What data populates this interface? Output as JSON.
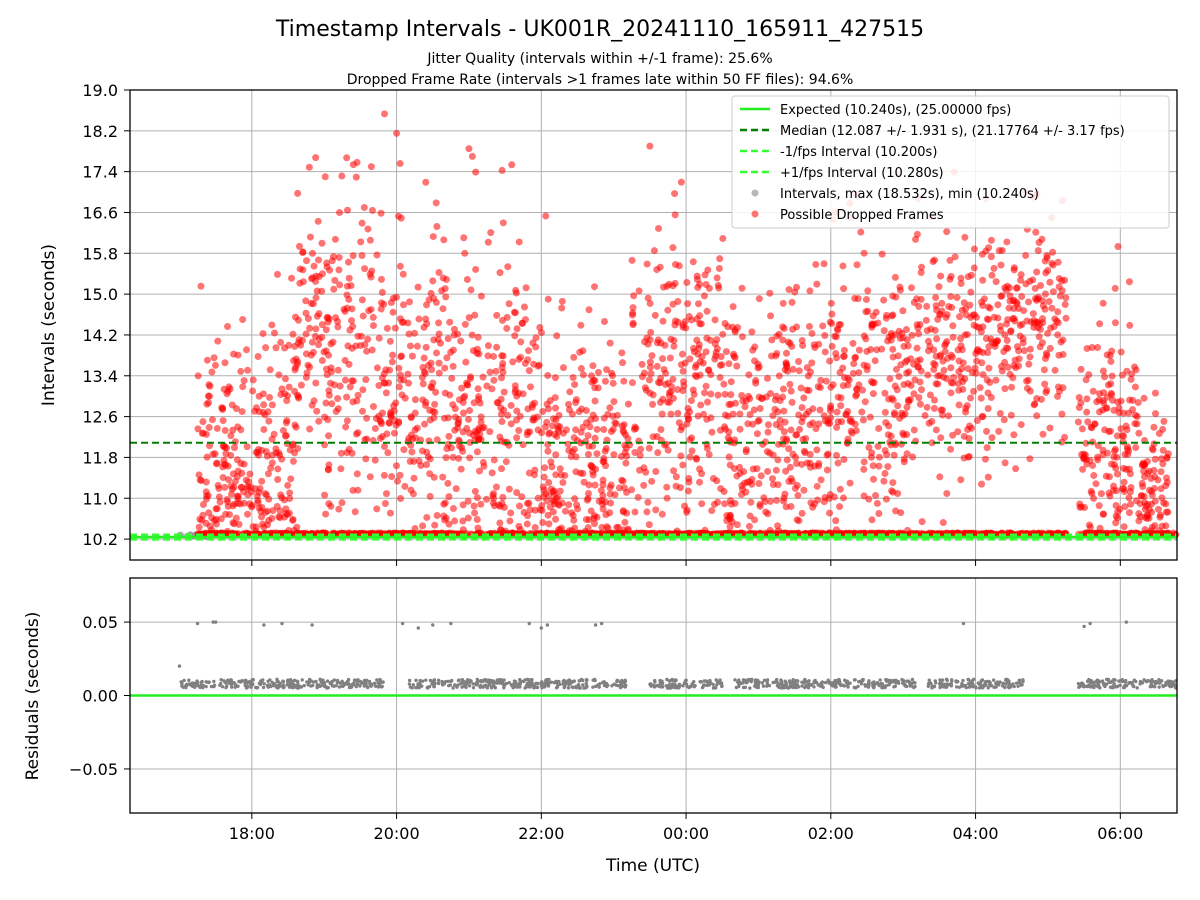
{
  "title": "Timestamp Intervals - UK001R_20241110_165911_427515",
  "subtitle_1": "Jitter Quality (intervals within +/-1 frame): 25.6%",
  "subtitle_2": "Dropped Frame Rate (intervals >1 frames late within 50 FF files): 94.6%",
  "colors": {
    "expected": "#22ee22",
    "median": "#008000",
    "fps_bound": "#33ff33",
    "intervals": "#999999",
    "dropped": "#ff0000",
    "residual": "#808080",
    "grid": "#b0b0b0"
  },
  "chart_data": [
    {
      "type": "scatter",
      "ylabel": "Intervals (seconds)",
      "xlim": [
        "16:19",
        "06:47"
      ],
      "ylim": [
        9.79,
        19.0
      ],
      "yticks": [
        "10.2",
        "11.0",
        "11.8",
        "12.6",
        "13.4",
        "14.2",
        "15.0",
        "15.8",
        "16.6",
        "17.4",
        "18.2",
        "19.0"
      ],
      "grid": true,
      "legend_position": "upper-right",
      "lines": [
        {
          "name": "Expected (10.240s), (25.00000 fps)",
          "y": 10.24,
          "style": "solid"
        },
        {
          "name": "Median (12.087 +/- 1.931 s), (21.17764 +/- 3.17 fps)",
          "y": 12.087,
          "style": "dashed"
        },
        {
          "name": "-1/fps Interval (10.200s)",
          "y": 10.2,
          "style": "dashed"
        },
        {
          "name": "+1/fps Interval (10.280s)",
          "y": 10.28,
          "style": "dashed"
        }
      ],
      "series": [
        {
          "name": "Intervals, max (18.532s), min (10.240s)",
          "max": 18.532,
          "min": 10.24,
          "time_range": [
            "16:59",
            "06:47"
          ]
        },
        {
          "name": "Possible Dropped Frames",
          "segments": [
            [
              "17:15",
              "18:35",
              11.8,
              2.0
            ],
            [
              "18:35",
              "19:40",
              14.0,
              2.0
            ],
            [
              "19:40",
              "20:40",
              13.2,
              2.1
            ],
            [
              "20:40",
              "22:00",
              12.8,
              2.1
            ],
            [
              "22:00",
              "23:15",
              11.9,
              1.8
            ],
            [
              "23:15",
              "00:30",
              13.4,
              2.2
            ],
            [
              "00:30",
              "02:00",
              12.6,
              2.0
            ],
            [
              "02:00",
              "03:10",
              13.2,
              1.9
            ],
            [
              "03:10",
              "04:25",
              14.0,
              1.6
            ],
            [
              "04:25",
              "05:15",
              14.5,
              1.3
            ],
            [
              "05:25",
              "06:15",
              12.3,
              1.7
            ],
            [
              "06:15",
              "06:40",
              11.0,
              1.0
            ]
          ],
          "baseline_y": 10.28,
          "baseline_ranges": [
            [
              "17:15",
              "05:15"
            ],
            [
              "05:25",
              "06:47"
            ]
          ],
          "gaps": [
            [
              "05:15",
              "05:25"
            ]
          ],
          "highest": [
            [
              "19:50",
              18.532
            ],
            [
              "20:00",
              18.15
            ],
            [
              "23:30",
              17.9
            ],
            [
              "21:00",
              17.85
            ]
          ]
        }
      ]
    },
    {
      "type": "scatter",
      "xlabel": "Time (UTC)",
      "ylabel": "Residuals (seconds)",
      "xlim": [
        "16:19",
        "06:47"
      ],
      "ylim": [
        -0.08,
        0.08
      ],
      "yticks": [
        "−0.05",
        "0.00",
        "0.05"
      ],
      "xticks": [
        "18:00",
        "20:00",
        "22:00",
        "00:00",
        "02:00",
        "04:00",
        "06:00"
      ],
      "grid": true,
      "zero_line": 0.0,
      "series": [
        {
          "name": "Residuals",
          "band_y": 0.008,
          "band_clusters": [
            [
              "17:00",
              "18:35"
            ],
            [
              "18:35",
              "19:50"
            ],
            [
              "20:10",
              "21:40"
            ],
            [
              "21:40",
              "23:10"
            ],
            [
              "23:30",
              "00:30"
            ],
            [
              "00:40",
              "02:00"
            ],
            [
              "02:00",
              "03:10"
            ],
            [
              "03:20",
              "04:40"
            ],
            [
              "05:25",
              "06:47"
            ]
          ],
          "outliers": [
            [
              "17:00",
              0.02
            ],
            [
              "17:15",
              0.049
            ],
            [
              "17:28",
              0.05
            ],
            [
              "17:30",
              0.05
            ],
            [
              "18:10",
              0.048
            ],
            [
              "18:25",
              0.049
            ],
            [
              "18:50",
              0.048
            ],
            [
              "20:05",
              0.049
            ],
            [
              "20:18",
              0.046
            ],
            [
              "20:30",
              0.048
            ],
            [
              "20:45",
              0.049
            ],
            [
              "21:50",
              0.049
            ],
            [
              "22:00",
              0.046
            ],
            [
              "22:05",
              0.048
            ],
            [
              "22:45",
              0.048
            ],
            [
              "22:50",
              0.049
            ],
            [
              "03:50",
              0.049
            ],
            [
              "05:30",
              0.047
            ],
            [
              "05:35",
              0.049
            ],
            [
              "06:05",
              0.05
            ]
          ]
        }
      ]
    }
  ]
}
